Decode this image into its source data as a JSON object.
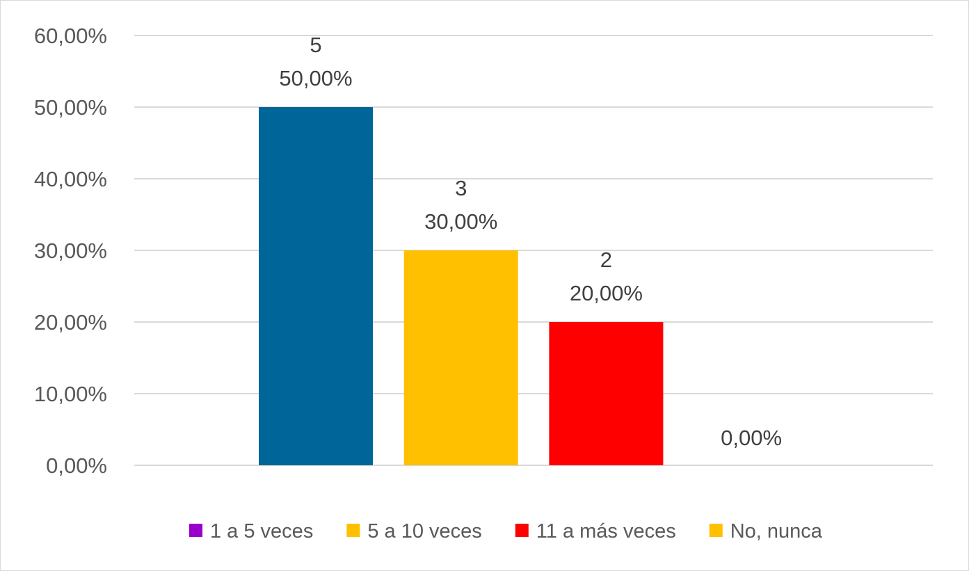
{
  "chart_data": {
    "type": "bar",
    "title": "",
    "xlabel": "",
    "ylabel": "",
    "ylim": [
      0,
      0.6
    ],
    "y_tick_labels": [
      "0,00%",
      "10,00%",
      "20,00%",
      "30,00%",
      "40,00%",
      "50,00%",
      "60,00%"
    ],
    "grid": true,
    "legend_position": "bottom",
    "categories": [
      "1 a 5 veces",
      "5 a 10 veces",
      "11 a más veces",
      "No, nunca"
    ],
    "values": [
      0.5,
      0.3,
      0.2,
      0.0
    ],
    "counts": [
      "5",
      "3",
      "2",
      ""
    ],
    "percent_labels": [
      "50,00%",
      "30,00%",
      "20,00%",
      "0,00%"
    ],
    "bar_colors": [
      "#006699",
      "#FFC000",
      "#FF0000",
      "#FFC000"
    ],
    "legend": [
      {
        "label": "1 a 5 veces",
        "color": "#9900CC"
      },
      {
        "label": "5 a 10 veces",
        "color": "#FFC000"
      },
      {
        "label": "11 a más veces",
        "color": "#FF0000"
      },
      {
        "label": "No, nunca",
        "color": "#FFC000"
      }
    ]
  }
}
